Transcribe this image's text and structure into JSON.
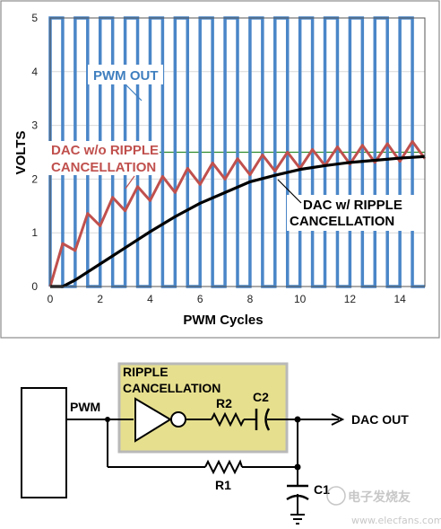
{
  "chart_data": {
    "type": "line",
    "xlabel": "PWM Cycles",
    "ylabel": "VOLTS",
    "xlim": [
      0,
      15
    ],
    "ylim": [
      0,
      5
    ],
    "xticks": [
      "0",
      "2",
      "4",
      "6",
      "8",
      "10",
      "12",
      "14"
    ],
    "yticks": [
      "0",
      "1",
      "2",
      "3",
      "4",
      "5"
    ],
    "grid": true,
    "reference_line": {
      "y": 2.5,
      "color": "#2e8b2e"
    },
    "annotations": {
      "pwm": "PWM OUT",
      "dac_no_line1": "DAC w/o RIPPLE",
      "dac_no_line2": "CANCELLATION",
      "dac_with_line1": "DAC w/ RIPPLE",
      "dac_with_line2": "CANCELLATION"
    },
    "series": [
      {
        "key": "pwm",
        "color": "#4a86c8",
        "kind": "square_wave",
        "period": 1,
        "duty": 0.5,
        "low": 0,
        "high": 5
      },
      {
        "key": "dac_no",
        "color": "#c0504d",
        "x": [
          0,
          0.5,
          1,
          1.5,
          2,
          2.5,
          3,
          3.5,
          4,
          4.5,
          5,
          5.5,
          6,
          6.5,
          7,
          7.5,
          8,
          8.5,
          9,
          9.5,
          10,
          10.5,
          11,
          11.5,
          12,
          12.5,
          13,
          13.5,
          14,
          14.5,
          15
        ],
        "values": [
          0,
          0.8,
          0.67,
          1.36,
          1.13,
          1.66,
          1.41,
          1.86,
          1.6,
          2.05,
          1.75,
          2.2,
          1.9,
          2.3,
          2.0,
          2.38,
          2.08,
          2.45,
          2.15,
          2.5,
          2.2,
          2.55,
          2.25,
          2.6,
          2.28,
          2.63,
          2.31,
          2.66,
          2.33,
          2.7,
          2.38
        ]
      },
      {
        "key": "dac_with",
        "color": "#000000",
        "x": [
          0,
          0.5,
          1,
          2,
          3,
          4,
          5,
          6,
          7,
          8,
          9,
          10,
          11,
          12,
          13,
          14,
          15
        ],
        "values": [
          0,
          0,
          0.12,
          0.42,
          0.72,
          1.02,
          1.3,
          1.55,
          1.75,
          1.95,
          2.07,
          2.18,
          2.25,
          2.31,
          2.35,
          2.39,
          2.42
        ]
      }
    ]
  },
  "circuit": {
    "title_line1": "RIPPLE",
    "title_line2": "CANCELLATION",
    "pwm_label": "PWM",
    "r2_label": "R2",
    "c2_label": "C2",
    "r1_label": "R1",
    "c1_label": "C1",
    "output_label": "DAC OUT",
    "box_fill": "#e6df8e",
    "box_stroke": "#b9b9b9"
  },
  "watermark": {
    "line1": "电子发烧友",
    "line2": "www.elecfans.com"
  }
}
